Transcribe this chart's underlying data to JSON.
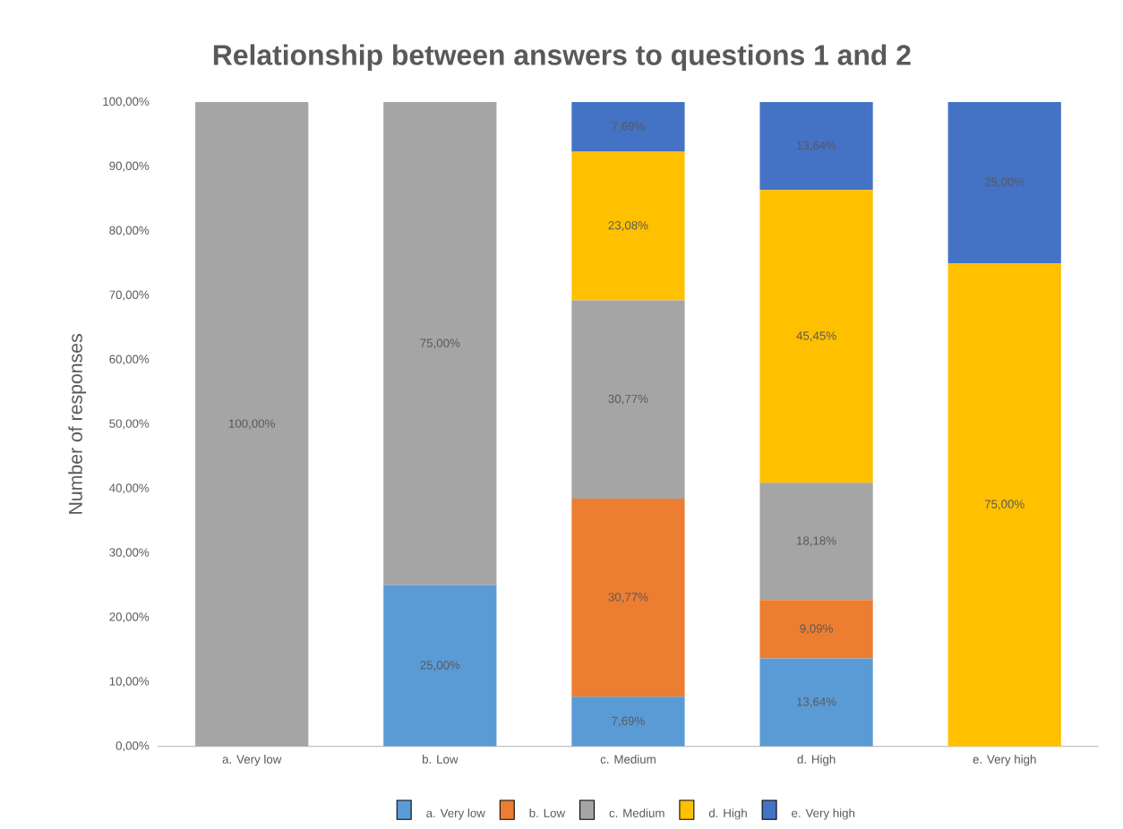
{
  "chart_data": {
    "type": "bar",
    "stacked": true,
    "title": "Relationship between answers to questions 1 and 2",
    "ylabel": "Number of responses",
    "categories": [
      "a. Very low",
      "b. Low",
      "c. Medium",
      "d. High",
      "e. Very high"
    ],
    "series": [
      {
        "name": "a. Very low",
        "color": "#5b9bd5",
        "values": [
          0,
          25,
          7.69,
          13.64,
          0
        ],
        "value_labels": [
          null,
          "25,00%",
          "7,69%",
          "13,64%",
          null
        ]
      },
      {
        "name": "b. Low",
        "color": "#ed7d31",
        "values": [
          0,
          0,
          30.77,
          9.09,
          0
        ],
        "value_labels": [
          null,
          null,
          "30,77%",
          "9,09%",
          null
        ]
      },
      {
        "name": "c. Medium",
        "color": "#a5a5a5",
        "values": [
          100,
          75,
          30.77,
          18.18,
          0
        ],
        "value_labels": [
          "100,00%",
          "75,00%",
          "30,77%",
          "18,18%",
          null
        ]
      },
      {
        "name": "d. High",
        "color": "#ffc000",
        "values": [
          0,
          0,
          23.08,
          45.45,
          75
        ],
        "value_labels": [
          null,
          null,
          "23,08%",
          "45,45%",
          "75,00%"
        ]
      },
      {
        "name": "e. Very high",
        "color": "#4472c4",
        "values": [
          0,
          0,
          7.69,
          13.64,
          25
        ],
        "value_labels": [
          null,
          null,
          "7,69%",
          "13,64%",
          "25,00%"
        ]
      }
    ],
    "ylim": [
      0,
      100
    ],
    "yticks": [
      {
        "value": 0,
        "label": "0,00%"
      },
      {
        "value": 10,
        "label": "10,00%"
      },
      {
        "value": 20,
        "label": "20,00%"
      },
      {
        "value": 30,
        "label": "30,00%"
      },
      {
        "value": 40,
        "label": "40,00%"
      },
      {
        "value": 50,
        "label": "50,00%"
      },
      {
        "value": 60,
        "label": "60,00%"
      },
      {
        "value": 70,
        "label": "70,00%"
      },
      {
        "value": 80,
        "label": "80,00%"
      },
      {
        "value": 90,
        "label": "90,00%"
      },
      {
        "value": 100,
        "label": "100,00%"
      }
    ],
    "grid": false,
    "legend": "bottom"
  }
}
